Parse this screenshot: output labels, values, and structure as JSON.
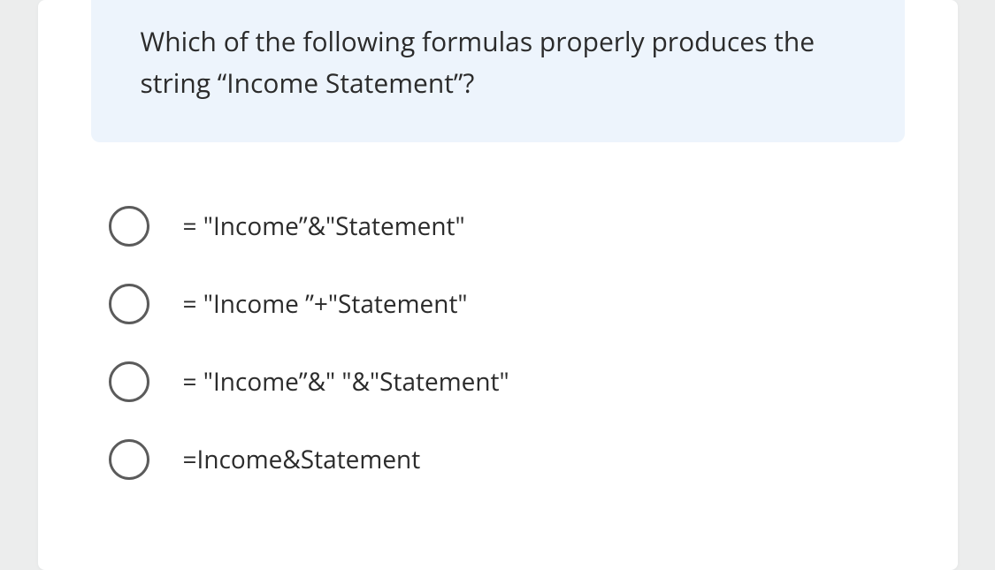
{
  "colors": {
    "page_bg": "#eceded",
    "card_bg": "#ffffff",
    "question_bg": "#edf4fc",
    "text": "#2b2b2b",
    "radio_border": "#5b5b5b"
  },
  "typography": {
    "question_fontsize": 30,
    "option_fontsize": 28,
    "line_height": 1.55
  },
  "question": {
    "text": "Which of the following formulas properly produces the string “Income Statement”?"
  },
  "options": [
    {
      "label": "= \"Income”&\"Statement\"",
      "selected": false
    },
    {
      "label": "= \"Income ”+\"Statement\"",
      "selected": false
    },
    {
      "label": "= \"Income”&\" \"&\"Statement\"",
      "selected": false
    },
    {
      "label": "=Income&Statement",
      "selected": false
    }
  ]
}
